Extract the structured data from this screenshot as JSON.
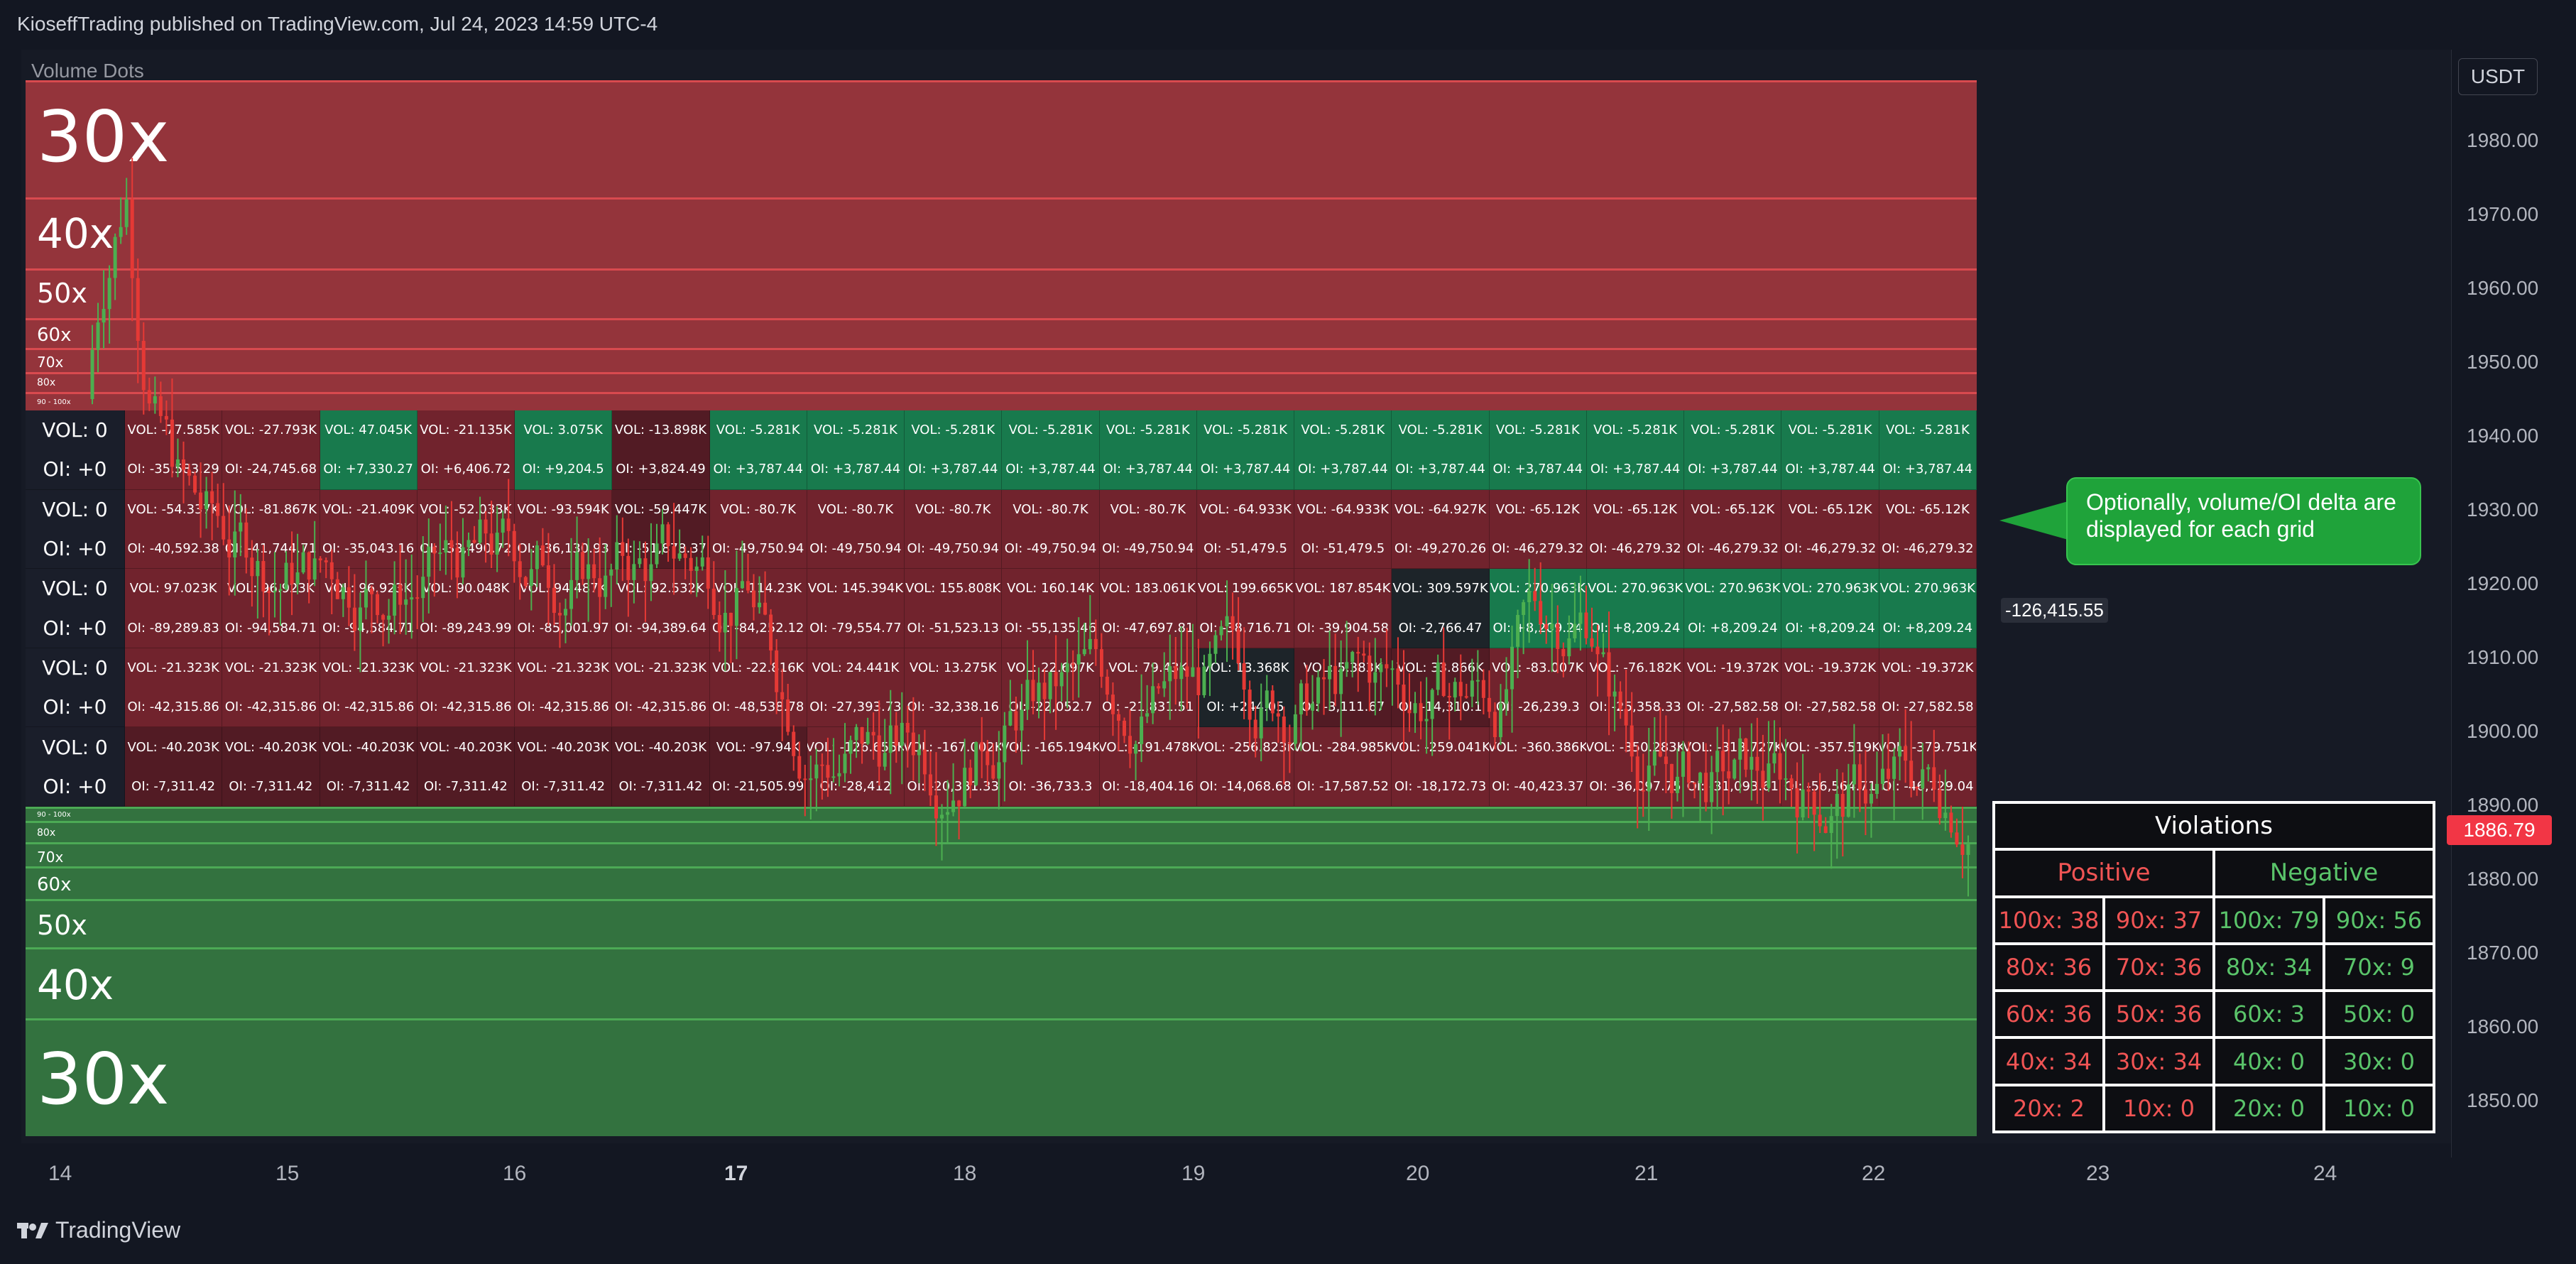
{
  "header": "KioseffTrading published on TradingView.com, Jul 24, 2023 14:59 UTC-4",
  "indicator_name": "Volume Dots",
  "currency": "USDT",
  "current_price": "1886.79",
  "value_tag": "-126,415.55",
  "price_ticks": [
    "1980.00",
    "1970.00",
    "1960.00",
    "1950.00",
    "1940.00",
    "1930.00",
    "1920.00",
    "1910.00",
    "1900.00",
    "1890.00",
    "1880.00",
    "1870.00",
    "1860.00",
    "1850.00"
  ],
  "time_ticks": [
    "14",
    "15",
    "16",
    "17",
    "18",
    "19",
    "20",
    "21",
    "22",
    "23",
    "24"
  ],
  "red_bands": [
    "30x",
    "40x",
    "50x",
    "60x",
    "70x",
    "80x",
    "90 - 100x"
  ],
  "green_bands": [
    "90 - 100x",
    "80x",
    "70x",
    "60x",
    "50x",
    "40x",
    "30x"
  ],
  "grid_rows": [
    {
      "vol_label": "VOL: 0",
      "oi_label": "OI: +0",
      "vol": [
        "VOL: -77.585K",
        "VOL: -27.793K",
        "VOL: 47.045K",
        "VOL: -21.135K",
        "VOL: 3.075K",
        "VOL: -13.898K",
        "VOL: -5.281K",
        "VOL: -5.281K",
        "VOL: -5.281K",
        "VOL: -5.281K",
        "VOL: -5.281K",
        "VOL: -5.281K",
        "VOL: -5.281K",
        "VOL: -5.281K",
        "VOL: -5.281K",
        "VOL: -5.281K",
        "VOL: -5.281K",
        "VOL: -5.281K",
        "VOL: -5.281K"
      ],
      "oi": [
        "OI: -35,583.29",
        "OI: -24,745.68",
        "OI: +7,330.27",
        "OI: +6,406.72",
        "OI: +9,204.5",
        "OI: +3,824.49",
        "OI: +3,787.44",
        "OI: +3,787.44",
        "OI: +3,787.44",
        "OI: +3,787.44",
        "OI: +3,787.44",
        "OI: +3,787.44",
        "OI: +3,787.44",
        "OI: +3,787.44",
        "OI: +3,787.44",
        "OI: +3,787.44",
        "OI: +3,787.44",
        "OI: +3,787.44",
        "OI: +3,787.44"
      ]
    },
    {
      "vol_label": "VOL: 0",
      "oi_label": "OI: +0",
      "vol": [
        "VOL: -54.337K",
        "VOL: -81.867K",
        "VOL: -21.409K",
        "VOL: -52.033K",
        "VOL: -93.594K",
        "VOL: -59.447K",
        "VOL: -80.7K",
        "VOL: -80.7K",
        "VOL: -80.7K",
        "VOL: -80.7K",
        "VOL: -80.7K",
        "VOL: -64.933K",
        "VOL: -64.933K",
        "VOL: -64.927K",
        "VOL: -65.12K",
        "VOL: -65.12K",
        "VOL: -65.12K",
        "VOL: -65.12K",
        "VOL: -65.12K"
      ],
      "oi": [
        "OI: -40,592.38",
        "OI: -41,744.71",
        "OI: -35,043.16",
        "OI: -33,490.72",
        "OI: -36,130.93",
        "OI: -51,878.37",
        "OI: -49,750.94",
        "OI: -49,750.94",
        "OI: -49,750.94",
        "OI: -49,750.94",
        "OI: -49,750.94",
        "OI: -51,479.5",
        "OI: -51,479.5",
        "OI: -49,270.26",
        "OI: -46,279.32",
        "OI: -46,279.32",
        "OI: -46,279.32",
        "OI: -46,279.32",
        "OI: -46,279.32"
      ]
    },
    {
      "vol_label": "VOL: 0",
      "oi_label": "OI: +0",
      "vol": [
        "VOL: 97.023K",
        "VOL: 96.923K",
        "VOL: 96.923K",
        "VOL: 90.048K",
        "VOL: 94.487K",
        "VOL: 92.532K",
        "VOL: 114.23K",
        "VOL: 145.394K",
        "VOL: 155.808K",
        "VOL: 160.14K",
        "VOL: 183.061K",
        "VOL: 199.665K",
        "VOL: 187.854K",
        "VOL: 309.597K",
        "VOL: 270.963K",
        "VOL: 270.963K",
        "VOL: 270.963K",
        "VOL: 270.963K",
        "VOL: 270.963K"
      ],
      "oi": [
        "OI: -89,289.83",
        "OI: -94,584.71",
        "OI: -94,584.71",
        "OI: -89,243.99",
        "OI: -85,001.97",
        "OI: -94,389.64",
        "OI: -84,252.12",
        "OI: -79,554.77",
        "OI: -51,523.13",
        "OI: -55,135.46",
        "OI: -47,697.81",
        "OI: -38,716.71",
        "OI: -39,904.58",
        "OI: -2,766.47",
        "OI: +8,209.24",
        "OI: +8,209.24",
        "OI: +8,209.24",
        "OI: +8,209.24",
        "OI: +8,209.24"
      ]
    },
    {
      "vol_label": "VOL: 0",
      "oi_label": "OI: +0",
      "vol": [
        "VOL: -21.323K",
        "VOL: -21.323K",
        "VOL: -21.323K",
        "VOL: -21.323K",
        "VOL: -21.323K",
        "VOL: -21.323K",
        "VOL: -22.816K",
        "VOL: 24.441K",
        "VOL: 13.275K",
        "VOL: 22.697K",
        "VOL: 79.43K",
        "VOL: 13.368K",
        "VOL: 5.383K",
        "VOL: 33.866K",
        "VOL: -83.007K",
        "VOL: -76.182K",
        "VOL: -19.372K",
        "VOL: -19.372K",
        "VOL: -19.372K"
      ],
      "oi": [
        "OI: -42,315.86",
        "OI: -42,315.86",
        "OI: -42,315.86",
        "OI: -42,315.86",
        "OI: -42,315.86",
        "OI: -42,315.86",
        "OI: -48,538.78",
        "OI: -27,393.73",
        "OI: -32,338.16",
        "OI: -22,052.7",
        "OI: -21,831.51",
        "OI: +244.05",
        "OI: -3,111.67",
        "OI: -14,310.1",
        "OI: -26,239.3",
        "OI: -25,358.33",
        "OI: -27,582.58",
        "OI: -27,582.58",
        "OI: -27,582.58"
      ]
    },
    {
      "vol_label": "VOL: 0",
      "oi_label": "OI: +0",
      "vol": [
        "VOL: -40.203K",
        "VOL: -40.203K",
        "VOL: -40.203K",
        "VOL: -40.203K",
        "VOL: -40.203K",
        "VOL: -40.203K",
        "VOL: -97.94K",
        "VOL: -126.655K",
        "VOL: -167.002K",
        "VOL: -165.194K",
        "VOL: -191.478K",
        "VOL: -256.823K",
        "VOL: -284.985K",
        "VOL: -259.041K",
        "VOL: -360.386K",
        "VOL: -350.283K",
        "VOL: -313.727K",
        "VOL: -357.519K",
        "VOL: -379.751K"
      ],
      "oi": [
        "OI: -7,311.42",
        "OI: -7,311.42",
        "OI: -7,311.42",
        "OI: -7,311.42",
        "OI: -7,311.42",
        "OI: -7,311.42",
        "OI: -21,505.99",
        "OI: -28,412",
        "OI: -20,331.33",
        "OI: -36,733.3",
        "OI: -18,404.16",
        "OI: -14,068.68",
        "OI: -17,587.52",
        "OI: -18,172.73",
        "OI: -40,423.37",
        "OI: -36,097.75",
        "OI: -31,093.61",
        "OI: -56,564.71",
        "OI: -46,729.04"
      ]
    }
  ],
  "callout": "Optionally, volume/OI delta are displayed for each grid",
  "violations": {
    "title": "Violations",
    "positive_header": "Positive",
    "negative_header": "Negative",
    "rows": [
      [
        "100x: 38",
        "90x: 37",
        "100x: 79",
        "90x: 56"
      ],
      [
        "80x: 36",
        "70x: 36",
        "80x: 34",
        "70x: 9"
      ],
      [
        "60x: 36",
        "50x: 36",
        "60x: 3",
        "50x: 0"
      ],
      [
        "40x: 34",
        "30x: 34",
        "40x: 0",
        "30x: 0"
      ],
      [
        "20x: 2",
        "10x: 0",
        "20x: 0",
        "10x: 0"
      ]
    ]
  },
  "logo": "TradingView",
  "colors": {
    "background": "#131722",
    "red": "#f23645",
    "green": "#089981",
    "callout": "#1fa33a"
  },
  "chart_data": {
    "type": "candlestick",
    "x": [
      "14",
      "15",
      "16",
      "17",
      "18",
      "19",
      "20",
      "21",
      "22",
      "23",
      "24"
    ],
    "y_range": [
      1845,
      1990
    ],
    "last_price": 1886.79
  }
}
